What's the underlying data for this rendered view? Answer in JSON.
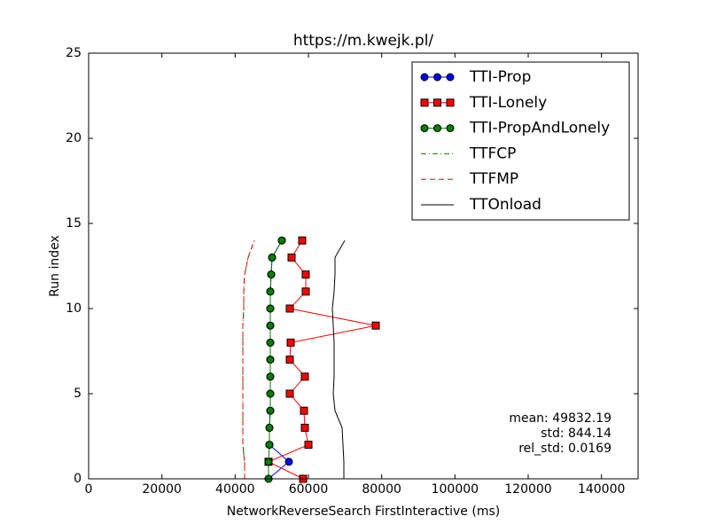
{
  "chart_data": {
    "type": "line",
    "title": "https://m.kwejk.pl/",
    "x_label": "NetworkReverseSearch FirstInteractive (ms)",
    "y_label": "Run index",
    "run_index": [
      0,
      1,
      2,
      3,
      4,
      5,
      6,
      7,
      8,
      9,
      10,
      11,
      12,
      13,
      14
    ],
    "series": [
      {
        "name": "TTI-Prop",
        "color": "#0000ff",
        "marker": "circle",
        "linestyle": "solid",
        "values": [
          49113,
          54677,
          49355,
          49355,
          49597,
          49597,
          49597,
          49597,
          49597,
          49597,
          49597,
          49597,
          49839,
          50081,
          52742
        ]
      },
      {
        "name": "TTI-Lonely",
        "color": "#ff0000",
        "marker": "square",
        "linestyle": "solid",
        "values": [
          58548,
          49113,
          60000,
          59032,
          58790,
          54919,
          59032,
          54919,
          55161,
          78387,
          54919,
          59274,
          59274,
          55403,
          58306
        ]
      },
      {
        "name": "TTI-PropAndLonely",
        "color": "#007f00",
        "marker": "circle",
        "linestyle": "solid",
        "values": [
          49113,
          49113,
          49355,
          49355,
          49597,
          49597,
          49597,
          49597,
          49597,
          49597,
          49597,
          49597,
          49839,
          50081,
          52742
        ]
      },
      {
        "name": "TTFCP",
        "color": "#007f00",
        "marker": "none",
        "linestyle": "dashdot",
        "values": [
          42581,
          42581,
          42097,
          42097,
          42097,
          42097,
          42097,
          42097,
          42097,
          42097,
          42339,
          42339,
          42581,
          43548,
          45242
        ]
      },
      {
        "name": "TTFMP",
        "color": "#ff0000",
        "marker": "none",
        "linestyle": "dashed",
        "values": [
          42581,
          42581,
          42097,
          42097,
          42097,
          42097,
          42097,
          42097,
          42097,
          42097,
          42339,
          42339,
          42581,
          43548,
          45242
        ]
      },
      {
        "name": "TTOnload",
        "color": "#000000",
        "marker": "none",
        "linestyle": "solid",
        "values": [
          69677,
          69677,
          69435,
          69194,
          67258,
          66774,
          67016,
          67016,
          67016,
          66774,
          66532,
          67016,
          67258,
          67258,
          69919
        ]
      }
    ],
    "xlim": [
      0,
      150000
    ],
    "xticks": [
      0,
      20000,
      40000,
      60000,
      80000,
      100000,
      120000,
      140000
    ],
    "ylim": [
      0,
      25
    ],
    "yticks": [
      0,
      5,
      10,
      15,
      20,
      25
    ],
    "legend": "upper right",
    "annotations": [
      "mean: 49832.19",
      "std: 844.14",
      "rel_std: 0.0169"
    ]
  }
}
